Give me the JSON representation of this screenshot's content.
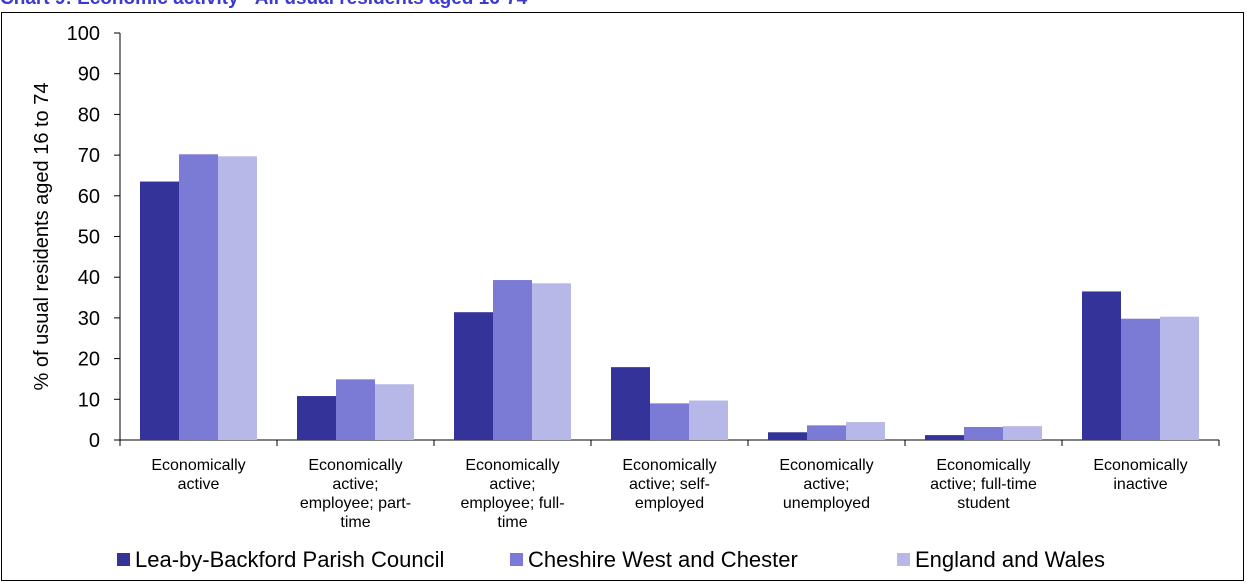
{
  "chart_data": {
    "type": "bar",
    "title": "Chart 9: Economic activity - All usual residents aged 16-74",
    "ylabel": "% of usual residents aged 16 to 74",
    "xlabel": "",
    "ylim": [
      0,
      100
    ],
    "yticks": [
      0,
      10,
      20,
      30,
      40,
      50,
      60,
      70,
      80,
      90,
      100
    ],
    "grid": false,
    "legend_position": "bottom",
    "categories": [
      [
        "Economically",
        "active"
      ],
      [
        "Economically",
        "active;",
        "employee; part-",
        "time"
      ],
      [
        "Economically",
        "active;",
        "employee; full-",
        "time"
      ],
      [
        "Economically",
        "active; self-",
        "employed"
      ],
      [
        "Economically",
        "active;",
        "unemployed"
      ],
      [
        "Economically",
        "active; full-time",
        "student"
      ],
      [
        "Economically",
        "inactive"
      ]
    ],
    "series": [
      {
        "name": "Lea-by-Backford Parish Council",
        "color": "#333399",
        "values": [
          63.5,
          10.8,
          31.4,
          17.9,
          1.9,
          1.2,
          36.5
        ]
      },
      {
        "name": "Cheshire West and Chester",
        "color": "#7B7BD6",
        "values": [
          70.2,
          14.9,
          39.3,
          9.0,
          3.6,
          3.2,
          29.8
        ]
      },
      {
        "name": "England and Wales",
        "color": "#B7B7E8",
        "values": [
          69.7,
          13.7,
          38.5,
          9.7,
          4.4,
          3.4,
          30.3
        ]
      }
    ]
  }
}
